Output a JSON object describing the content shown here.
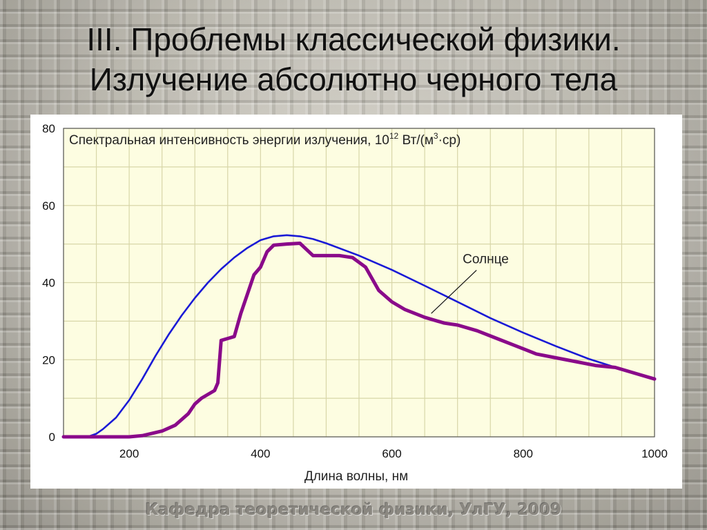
{
  "slide": {
    "title_line1": "III. Проблемы классической физики.",
    "title_line2": "Излучение абсолютно черного тела",
    "footer": "Кафедра теоретической физики, УлГУ, 2009"
  },
  "colors": {
    "plot_background": "#fdfde1",
    "grid": "#d8d6a8",
    "blackbody_curve": "#1a1ad6",
    "sun_curve": "#8a0a8a"
  },
  "chart_data": {
    "type": "line",
    "title": "",
    "ylabel_main": "Спектральная интенсивность энергии излучения, 10",
    "ylabel_exp": "12",
    "ylabel_unit": " Вт/(м",
    "ylabel_unit_exp": "3",
    "ylabel_unit_tail": "·ср)",
    "xlabel": "Длина волны, нм",
    "xlim": [
      100,
      1000
    ],
    "ylim": [
      0,
      80
    ],
    "x_ticks": [
      200,
      400,
      600,
      800,
      1000
    ],
    "y_ticks": [
      0,
      20,
      40,
      60,
      80
    ],
    "grid": true,
    "annotation": {
      "text": "Солнце",
      "series": "sun",
      "text_at": [
        710,
        45
      ],
      "arrow_to": [
        660,
        32
      ]
    },
    "series": [
      {
        "key": "blackbody",
        "x": [
          100,
          120,
          140,
          150,
          160,
          180,
          200,
          220,
          240,
          260,
          280,
          300,
          320,
          340,
          360,
          380,
          400,
          420,
          440,
          460,
          480,
          500,
          550,
          600,
          650,
          700,
          750,
          800,
          850,
          900,
          950,
          1000
        ],
        "y": [
          0,
          0,
          0.2,
          0.8,
          2,
          5,
          9.5,
          15,
          21,
          26.5,
          31.5,
          36,
          40,
          43.5,
          46.5,
          49,
          51,
          52,
          52.3,
          52,
          51.3,
          50.2,
          47,
          43.3,
          39.2,
          35,
          30.8,
          27,
          23.5,
          20.2,
          17.5,
          15
        ]
      },
      {
        "key": "sun",
        "x": [
          100,
          150,
          200,
          220,
          250,
          270,
          290,
          300,
          310,
          320,
          330,
          335,
          340,
          350,
          360,
          370,
          380,
          390,
          400,
          410,
          420,
          440,
          460,
          480,
          500,
          520,
          540,
          560,
          580,
          600,
          620,
          650,
          680,
          700,
          730,
          760,
          790,
          820,
          850,
          880,
          910,
          940,
          960,
          980,
          1000
        ],
        "y": [
          0,
          0,
          0,
          0.3,
          1.5,
          3,
          6,
          8.5,
          10,
          11,
          12,
          14,
          25,
          25.5,
          26,
          32,
          37,
          42,
          44,
          48,
          49.7,
          50,
          50.2,
          47,
          47,
          47,
          46.5,
          44,
          38,
          35,
          33,
          31,
          29.5,
          29,
          27.5,
          25.5,
          23.5,
          21.5,
          20.5,
          19.5,
          18.5,
          18,
          17,
          16,
          15
        ]
      }
    ]
  }
}
